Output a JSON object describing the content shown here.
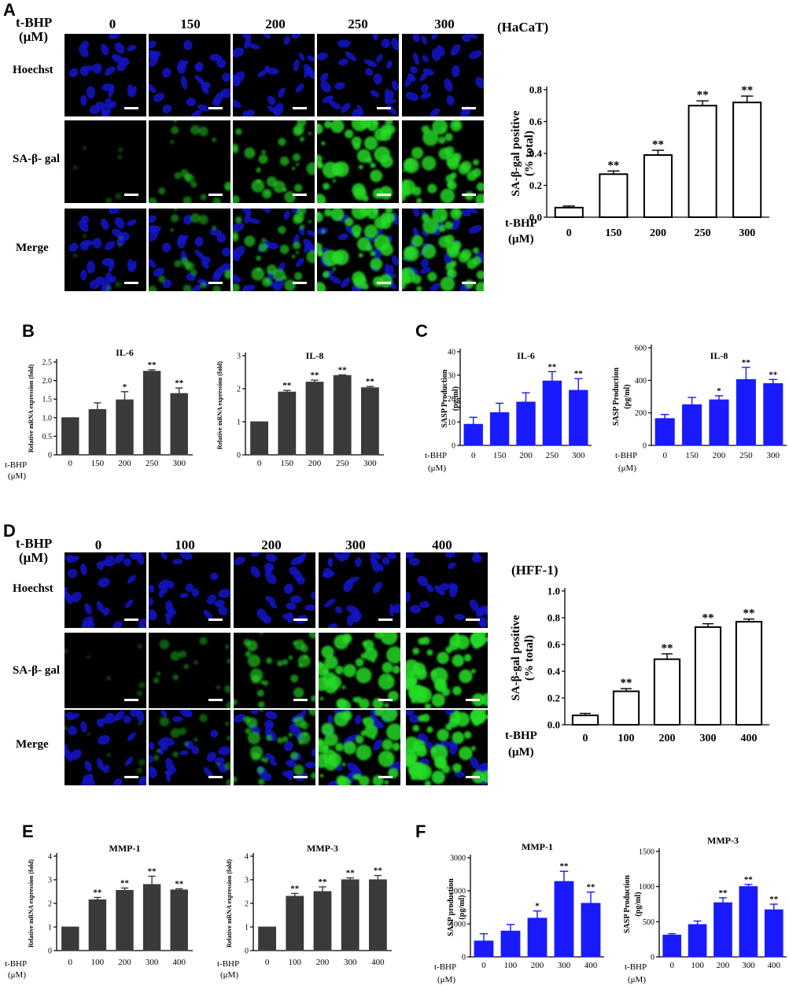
{
  "panels": {
    "A": {
      "letter": "A",
      "dose_label": [
        "t-BHP",
        "(μM)"
      ],
      "doses": [
        "0",
        "150",
        "200",
        "250",
        "300"
      ],
      "rows": [
        "Hoechst",
        "SA-β- gal",
        "Merge"
      ],
      "cell_line": "(HaCaT)"
    },
    "B": {
      "letter": "B"
    },
    "C": {
      "letter": "C"
    },
    "D": {
      "letter": "D",
      "dose_label": [
        "t-BHP",
        "(μM)"
      ],
      "doses": [
        "0",
        "100",
        "200",
        "300",
        "400"
      ],
      "rows": [
        "Hoechst",
        "SA-β- gal",
        "Merge"
      ],
      "cell_line": "(HFF-1)"
    },
    "E": {
      "letter": "E"
    },
    "F": {
      "letter": "F"
    }
  },
  "image_tiles": {
    "hoechst_color": "#1414c8",
    "sa_gal_color": "#28dc28",
    "background": "#000000",
    "scale_bar_color": "#ffffff",
    "sa_gal_intensity_A": [
      0.05,
      0.35,
      0.6,
      0.9,
      0.85
    ],
    "sa_gal_intensity_D": [
      0.05,
      0.25,
      0.55,
      0.9,
      0.95
    ]
  },
  "chart_data": [
    {
      "id": "A-bar",
      "type": "bar",
      "ylabel": [
        "SA-β-gal positive",
        "(% total)"
      ],
      "xlabel": [
        "t-BHP",
        "(μM)"
      ],
      "categories": [
        "0",
        "150",
        "200",
        "250",
        "300"
      ],
      "values": [
        0.06,
        0.27,
        0.39,
        0.7,
        0.72
      ],
      "errors": [
        0.01,
        0.02,
        0.03,
        0.03,
        0.04
      ],
      "sig": [
        "",
        "**",
        "**",
        "**",
        "**"
      ],
      "ylim": [
        0,
        0.8
      ],
      "ticks": [
        0.0,
        0.2,
        0.4,
        0.6,
        0.8
      ],
      "tick_labels": [
        "0.0",
        "0.2",
        "0.4",
        "0.6",
        "0.8"
      ],
      "color": "#ffffff"
    },
    {
      "id": "B-IL6",
      "type": "bar",
      "title": "IL-6",
      "ylabel": [
        "Relative mRNA expression (fold)"
      ],
      "xlabel": [
        "t-BHP",
        "(μM)"
      ],
      "categories": [
        "0",
        "150",
        "200",
        "250",
        "300"
      ],
      "values": [
        1.0,
        1.22,
        1.48,
        2.25,
        1.65
      ],
      "errors": [
        0.0,
        0.18,
        0.22,
        0.04,
        0.15
      ],
      "sig": [
        "",
        "",
        "*",
        "**",
        "**"
      ],
      "ylim": [
        0,
        2.5
      ],
      "ticks": [
        0,
        0.5,
        1.0,
        1.5,
        2.0,
        2.5
      ],
      "tick_labels": [
        "0",
        "0.5",
        "1.0",
        "1.5",
        "2.0",
        "2.5"
      ],
      "color": "#3a3a3a"
    },
    {
      "id": "B-IL8",
      "type": "bar",
      "title": "IL-8",
      "ylabel": [
        "Relative mRNA expression (fold)"
      ],
      "xlabel": [],
      "categories": [
        "0",
        "150",
        "200",
        "250",
        "300"
      ],
      "values": [
        1.0,
        1.9,
        2.2,
        2.4,
        2.03
      ],
      "errors": [
        0.0,
        0.05,
        0.06,
        0.02,
        0.04
      ],
      "sig": [
        "",
        "**",
        "**",
        "**",
        "**"
      ],
      "ylim": [
        0,
        3
      ],
      "ticks": [
        0,
        1,
        2,
        3
      ],
      "tick_labels": [
        "0",
        "1",
        "2",
        "3"
      ],
      "color": "#3a3a3a"
    },
    {
      "id": "C-IL6",
      "type": "bar",
      "title": "IL-6",
      "ylabel": [
        "SASP Production",
        "(pg/ml)"
      ],
      "xlabel": [
        "t-BHP",
        "(μM)"
      ],
      "categories": [
        "0",
        "150",
        "200",
        "250",
        "300"
      ],
      "values": [
        9,
        14,
        18.5,
        27.5,
        23.5
      ],
      "errors": [
        3,
        4,
        4,
        4,
        5
      ],
      "sig": [
        "",
        "",
        "",
        "**",
        "**"
      ],
      "ylim": [
        0,
        40
      ],
      "ticks": [
        0,
        10,
        20,
        30,
        40
      ],
      "tick_labels": [
        "0",
        "10",
        "20",
        "30",
        "40"
      ],
      "color": "#1a1aff"
    },
    {
      "id": "C-IL8",
      "type": "bar",
      "title": "IL-8",
      "ylabel": [
        "SASP Production",
        "(pg/ml)"
      ],
      "xlabel": [
        "t-BHP",
        "(μM)"
      ],
      "categories": [
        "0",
        "150",
        "200",
        "250",
        "300"
      ],
      "values": [
        165,
        250,
        280,
        405,
        380
      ],
      "errors": [
        25,
        45,
        25,
        75,
        25
      ],
      "sig": [
        "",
        "",
        "*",
        "**",
        "**"
      ],
      "ylim": [
        0,
        600
      ],
      "ticks": [
        0,
        200,
        400,
        600
      ],
      "tick_labels": [
        "0",
        "200",
        "400",
        "600"
      ],
      "color": "#1a1aff"
    },
    {
      "id": "D-bar",
      "type": "bar",
      "ylabel": [
        "SA-β-gal positive",
        "(% total)"
      ],
      "xlabel": [
        "t-BHP",
        "(μM)"
      ],
      "categories": [
        "0",
        "100",
        "200",
        "300",
        "400"
      ],
      "values": [
        0.07,
        0.25,
        0.49,
        0.73,
        0.77
      ],
      "errors": [
        0.015,
        0.02,
        0.04,
        0.025,
        0.02
      ],
      "sig": [
        "",
        "**",
        "**",
        "**",
        "**"
      ],
      "ylim": [
        0,
        1.0
      ],
      "ticks": [
        0.0,
        0.2,
        0.4,
        0.6,
        0.8,
        1.0
      ],
      "tick_labels": [
        "0.0",
        "0.2",
        "0.4",
        "0.6",
        "0.8",
        "1.0"
      ],
      "color": "#ffffff"
    },
    {
      "id": "E-MMP1",
      "type": "bar",
      "title": "MMP-1",
      "ylabel": [
        "Relative mRNA expression (fold)"
      ],
      "xlabel": [
        "t-BHP",
        "(μM)"
      ],
      "categories": [
        "0",
        "100",
        "200",
        "300",
        "400"
      ],
      "values": [
        1.0,
        2.15,
        2.55,
        2.8,
        2.57
      ],
      "errors": [
        0.0,
        0.1,
        0.1,
        0.35,
        0.05
      ],
      "sig": [
        "",
        "**",
        "**",
        "**",
        "**"
      ],
      "ylim": [
        0,
        4
      ],
      "ticks": [
        0,
        1,
        2,
        3,
        4
      ],
      "tick_labels": [
        "0",
        "1",
        "2",
        "3",
        "4"
      ],
      "color": "#3a3a3a"
    },
    {
      "id": "E-MMP3",
      "type": "bar",
      "title": "MMP-3",
      "ylabel": [
        "Relative mRNA expression (fold)"
      ],
      "xlabel": [
        "t-BHP",
        "(μM)"
      ],
      "categories": [
        "0",
        "100",
        "200",
        "300",
        "400"
      ],
      "values": [
        1.0,
        2.3,
        2.5,
        3.0,
        3.0
      ],
      "errors": [
        0.0,
        0.12,
        0.2,
        0.08,
        0.18
      ],
      "sig": [
        "",
        "**",
        "**",
        "**",
        "**"
      ],
      "ylim": [
        0,
        4
      ],
      "ticks": [
        0,
        1,
        2,
        3,
        4
      ],
      "tick_labels": [
        "0",
        "1",
        "2",
        "3",
        "4"
      ],
      "color": "#3a3a3a"
    },
    {
      "id": "F-MMP1",
      "type": "bar",
      "title": "MMP-1",
      "ylabel": [
        "SASP production",
        "(pg/ml)"
      ],
      "xlabel": [
        "t-BHP",
        "(μM)"
      ],
      "categories": [
        "0",
        "100",
        "200",
        "300",
        "400"
      ],
      "values": [
        480,
        780,
        1170,
        2280,
        1620
      ],
      "errors": [
        220,
        200,
        220,
        310,
        340
      ],
      "sig": [
        "",
        "",
        "*",
        "**",
        "**"
      ],
      "ylim": [
        0,
        3000
      ],
      "ticks": [
        0,
        1000,
        2000,
        3000
      ],
      "tick_labels": [
        "0",
        "1000",
        "2000",
        "3000"
      ],
      "color": "#1a1aff"
    },
    {
      "id": "F-MMP3",
      "type": "bar",
      "title": "MMP-3",
      "ylabel": [
        "SASP Production",
        "(pg/ml)"
      ],
      "xlabel": [
        "t-BHP",
        "(μM)"
      ],
      "categories": [
        "0",
        "100",
        "200",
        "300",
        "400"
      ],
      "values": [
        310,
        460,
        770,
        1000,
        670
      ],
      "errors": [
        20,
        50,
        70,
        30,
        80
      ],
      "sig": [
        "",
        "",
        "**",
        "**",
        "**"
      ],
      "ylim": [
        0,
        1500
      ],
      "ticks": [
        0,
        500,
        1000,
        1500
      ],
      "tick_labels": [
        "0",
        "500",
        "1000",
        "1500"
      ],
      "color": "#1a1aff"
    }
  ]
}
